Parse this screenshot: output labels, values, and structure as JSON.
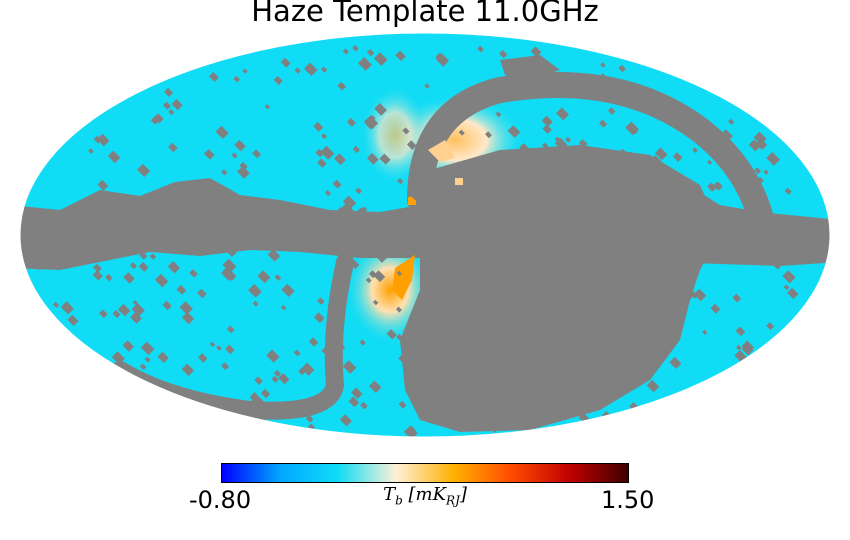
{
  "chart_data": {
    "type": "heatmap",
    "projection": "mollweide",
    "title": "Haze Template 11.0GHz",
    "colorbar": {
      "min_label": "-0.80",
      "max_label": "1.50",
      "min": -0.8,
      "max": 1.5,
      "label_symbol": "T",
      "label_sub": "b",
      "label_unit": "mK",
      "label_unit_sub": "RJ",
      "colormap": [
        "#0000ff",
        "#00a6ff",
        "#10dcf5",
        "#fff0d8",
        "#ffb000",
        "#ff4a00",
        "#c00000",
        "#400000"
      ]
    },
    "colors": {
      "masked": "#808080",
      "background_value": "#10dcf5",
      "warm_mid": "#ffe2b0",
      "warm_high": "#ffa000"
    },
    "regions": [
      {
        "name": "galactic-plane-mask",
        "value": "masked"
      },
      {
        "name": "north-polar-spur-mask",
        "value": "masked"
      },
      {
        "name": "haze-lobe-north",
        "value_range": [
          0.0,
          0.9
        ]
      },
      {
        "name": "haze-lobe-south",
        "value_range": [
          0.0,
          1.0
        ]
      },
      {
        "name": "unmasked-sky",
        "value": -0.05
      }
    ]
  }
}
